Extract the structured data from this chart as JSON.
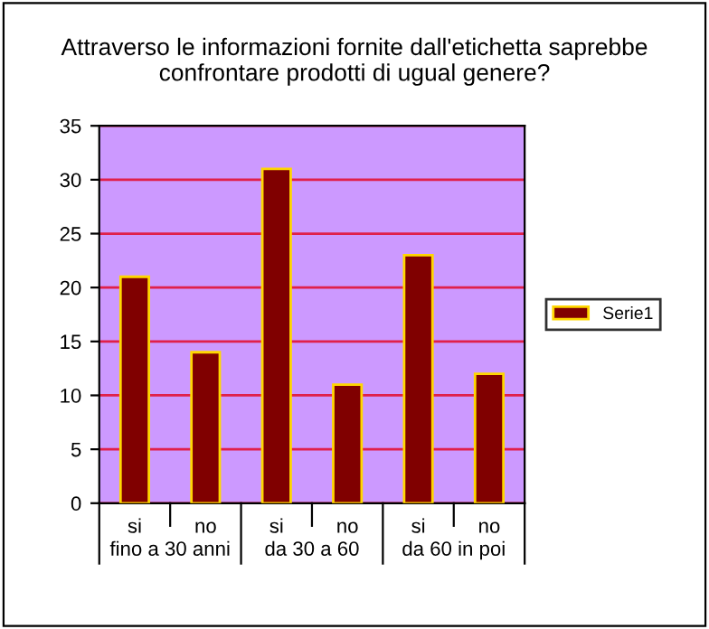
{
  "chart_data": {
    "type": "bar",
    "title": "Attraverso le informazioni fornite dall'etichetta saprebbe confrontare prodotti di ugual genere?",
    "categories": [
      "si",
      "no",
      "si",
      "no",
      "si",
      "no"
    ],
    "series": [
      {
        "name": "Serie1",
        "color": "#800000",
        "values": [
          21,
          14,
          31,
          11,
          23,
          12
        ]
      }
    ],
    "annotations": [
      "fino a 30 anni",
      "da 30 a 60",
      "da 60 in poi"
    ],
    "ylim": [
      0,
      35
    ],
    "yticks": [
      0,
      5,
      10,
      15,
      20,
      25,
      30,
      35
    ],
    "grid": "y",
    "legend": "right"
  }
}
